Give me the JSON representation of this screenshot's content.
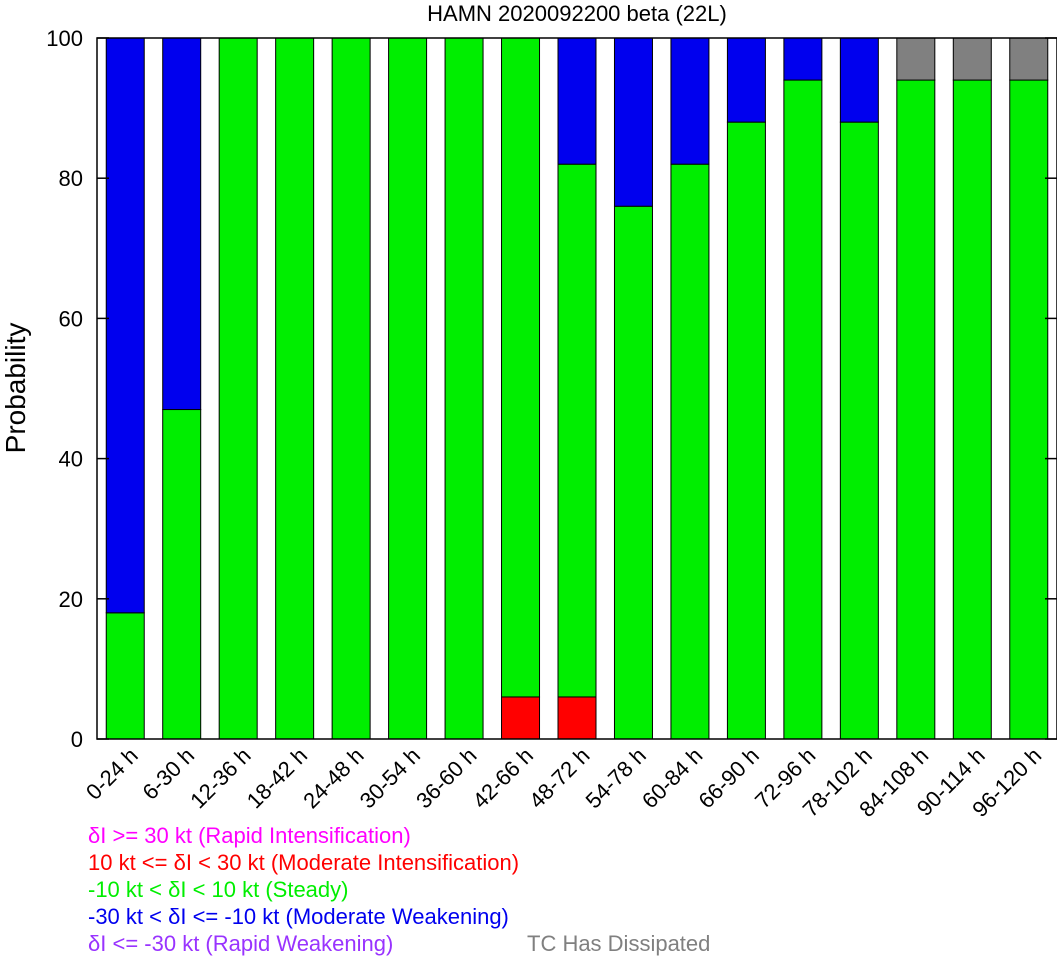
{
  "chart_data": {
    "type": "bar",
    "stacked": true,
    "title": "HAMN 2020092200 beta (22L)",
    "xlabel": "",
    "ylabel": "Probability",
    "ylim": [
      0,
      100
    ],
    "yticks": [
      0,
      20,
      40,
      60,
      80,
      100
    ],
    "grid": false,
    "categories": [
      "0-24 h",
      "6-30 h",
      "12-36 h",
      "18-42 h",
      "24-48 h",
      "30-54 h",
      "36-60 h",
      "42-66 h",
      "48-72 h",
      "54-78 h",
      "60-84 h",
      "66-90 h",
      "72-96 h",
      "78-102 h",
      "84-108 h",
      "90-114 h",
      "96-120 h"
    ],
    "series": [
      {
        "name": "δI >= 30 kt (Rapid Intensification)",
        "color": "#ff00ff",
        "values": [
          0,
          0,
          0,
          0,
          0,
          0,
          0,
          0,
          0,
          0,
          0,
          0,
          0,
          0,
          0,
          0,
          0
        ]
      },
      {
        "name": "10 kt <= δI < 30 kt (Moderate Intensification)",
        "color": "#ff0000",
        "values": [
          0,
          0,
          0,
          0,
          0,
          0,
          0,
          6,
          6,
          0,
          0,
          0,
          0,
          0,
          0,
          0,
          0
        ]
      },
      {
        "name": "-10 kt < δI < 10 kt (Steady)",
        "color": "#00ee00",
        "values": [
          18,
          47,
          100,
          100,
          100,
          100,
          100,
          94,
          76,
          76,
          82,
          88,
          94,
          88,
          94,
          94,
          94
        ]
      },
      {
        "name": "-30 kt < δI <= -10 kt (Moderate Weakening)",
        "color": "#0000ee",
        "values": [
          82,
          53,
          0,
          0,
          0,
          0,
          0,
          0,
          18,
          24,
          18,
          12,
          6,
          12,
          0,
          0,
          0
        ]
      },
      {
        "name": "δI <= -30 kt (Rapid Weakening)",
        "color": "#9933ff",
        "values": [
          0,
          0,
          0,
          0,
          0,
          0,
          0,
          0,
          0,
          0,
          0,
          0,
          0,
          0,
          0,
          0,
          0
        ]
      },
      {
        "name": "TC Has Dissipated",
        "color": "#808080",
        "values": [
          0,
          0,
          0,
          0,
          0,
          0,
          0,
          0,
          0,
          0,
          0,
          0,
          0,
          0,
          6,
          6,
          6
        ]
      }
    ]
  },
  "legend": {
    "ri": "δI >= 30 kt (Rapid Intensification)",
    "mi": "10 kt <= δI < 30 kt (Moderate Intensification)",
    "steady": "-10 kt < δI < 10 kt (Steady)",
    "mw": "-30 kt < δI <= -10 kt (Moderate Weakening)",
    "rw": "δI <= -30 kt (Rapid Weakening)",
    "dissipated": "TC Has Dissipated"
  }
}
